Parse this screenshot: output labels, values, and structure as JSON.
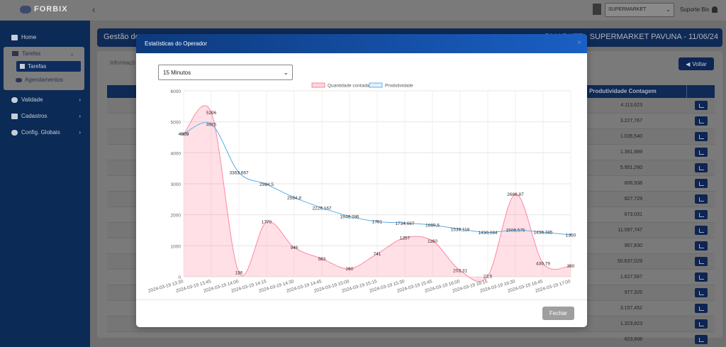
{
  "app": {
    "logo_text": "FORBIX",
    "store_select": "SUPERMARKET",
    "user_name": "Suporte Bix"
  },
  "sidebar": {
    "items": [
      {
        "label": "Home",
        "icon": "home-icon"
      },
      {
        "label": "Tarefas",
        "icon": "users-icon"
      },
      {
        "label": "Tarefas",
        "icon": "table-icon"
      },
      {
        "label": "Agendamentos",
        "icon": "users-icon"
      },
      {
        "label": "Validade",
        "icon": "clock-icon"
      },
      {
        "label": "Cadastros",
        "icon": "edit-icon"
      },
      {
        "label": "Config. Globais",
        "icon": "gear-icon"
      }
    ]
  },
  "page": {
    "title_left": "Gestão de",
    "title_right": "RMARKET - SUPERMARKET PAVUNA - 11/06/24",
    "info_tab": "Informaçõ",
    "voltar_label": "Voltar",
    "column_header": "Produtividade Contagem",
    "rows": [
      "4.113,623",
      "3.227,767",
      "1.035,540",
      "1.361,889",
      "5.951,260",
      "606,938",
      "827,729",
      "673,031",
      "11.097,747",
      "957,830",
      "50.637,029",
      "1.627,567",
      "977,325",
      "3.157,452",
      "1.323,823",
      "623,608"
    ]
  },
  "modal": {
    "title": "Estatísticas do Operador",
    "close": "×",
    "interval": "15 Minutos",
    "fechar_label": "Fechar"
  },
  "chart_data": {
    "type": "line",
    "x": [
      "2024-03-19 13:30",
      "2024-03-19 13:45",
      "2024-03-19 14:00",
      "2024-03-19 14:15",
      "2024-03-19 14:30",
      "2024-03-19 14:45",
      "2024-03-19 15:00",
      "2024-03-19 15:15",
      "2024-03-19 15:30",
      "2024-03-19 15:45",
      "2024-03-19 16:00",
      "2024-03-19 16:15",
      "2024-03-19 16:30",
      "2024-03-19 16:45",
      "2024-03-19 17:00"
    ],
    "series": [
      {
        "name": "Quantidade contada",
        "style": "area",
        "color": "#ff6384",
        "values": [
          4609,
          5296,
          136,
          1770,
          946,
          583,
          260,
          741,
          1257,
          1160,
          203.31,
          22.5,
          2666.87,
          430.79,
          350
        ],
        "labels": [
          "4609",
          "5296",
          "136",
          "1770",
          "946",
          "583",
          "260",
          "741",
          "1257",
          "1160",
          "203,31",
          "22,5",
          "2666,87",
          "430,79",
          "350"
        ]
      },
      {
        "name": "Produtividade",
        "style": "line",
        "color": "#36a2eb",
        "values": [
          4609,
          4925,
          3363.667,
          2984.5,
          2554.8,
          2226.167,
          1948.286,
          1781,
          1734.667,
          1669.5,
          1536.118,
          1430.084,
          1506.575,
          1438.385,
          1350
        ],
        "labels": [
          "4609",
          "4925",
          "3363,667",
          "2984,5",
          "2554,8",
          "2226,167",
          "1948,286",
          "1781",
          "1734,667",
          "1669,5",
          "1536,118",
          "1430,084",
          "1506,575",
          "1438,385",
          "1350"
        ]
      }
    ],
    "ylim": [
      0,
      6000
    ],
    "yticks": [
      "0",
      "1000",
      "2000",
      "3000",
      "4000",
      "5000",
      "6000"
    ],
    "xtick_labels": [
      "2024-03-19 13:30",
      "2024-03-19 13:45",
      "2024-03-19 14:00",
      "2024-03-19 14:15",
      "2024-03-19 14:30",
      "2024-03-19 14:45",
      "2024-03-19 15:00",
      "2024-03-19 15:15",
      "2024-03-19 15:30",
      "2024-03-19 15:45",
      "2024-03-19 16:00",
      "2024-03-19 16:15",
      "2024-03-19 16:30",
      "2024-03-19 16:45",
      "2024-03-19 17:00"
    ],
    "grid": true,
    "legend": "top"
  }
}
